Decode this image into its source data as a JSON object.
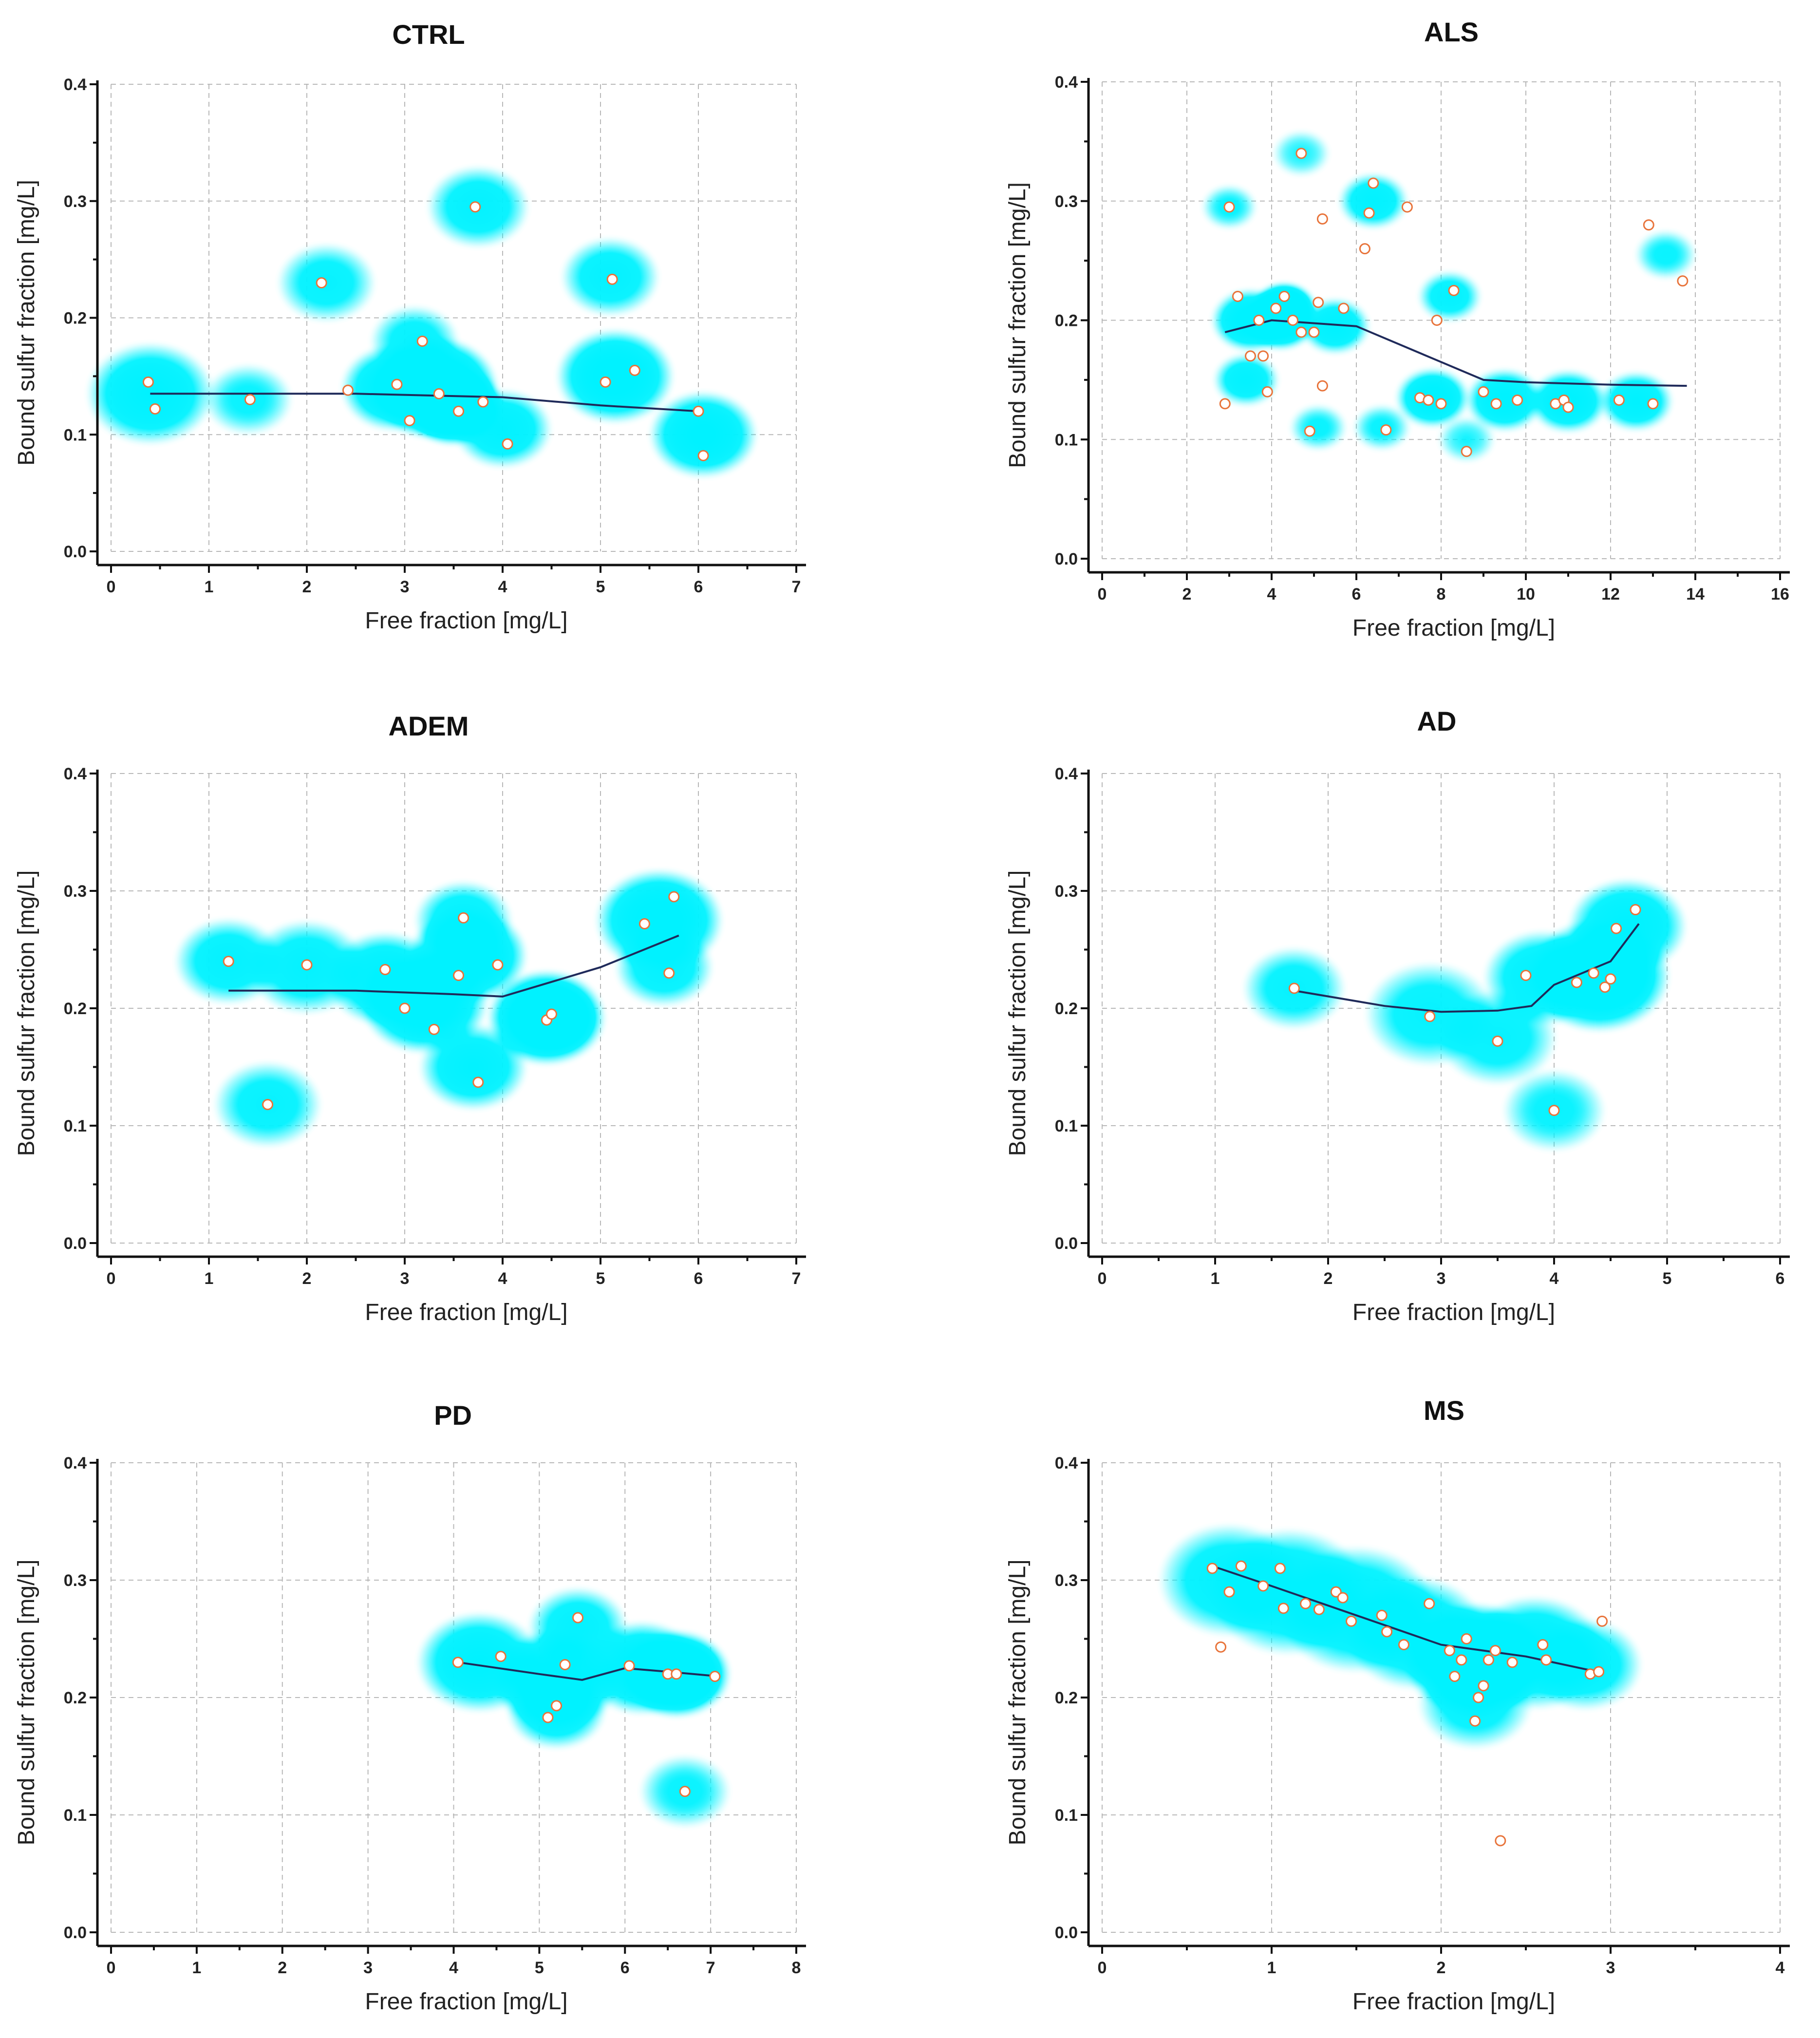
{
  "colors": {
    "heat_low": "#00f0ff",
    "heat_mid": "#22dd22",
    "heat_high": "#ff1a00",
    "trend_line": "#1f2a5a",
    "point_fill": "#ffffff",
    "point_stroke": "#e8743b",
    "grid": "#b8b8b8"
  },
  "chart_data": [
    {
      "type": "scatter",
      "title": "CTRL",
      "xlabel": "Free fraction [mg/L]",
      "ylabel": "Bound sulfur fraction [mg/L]",
      "xlim": [
        0,
        7
      ],
      "ylim": [
        0,
        0.4
      ],
      "xticks": [
        "0",
        "1",
        "2",
        "3",
        "4",
        "5",
        "6",
        "7"
      ],
      "yticks": [
        "0.0",
        "0.1",
        "0.2",
        "0.3",
        "0.4"
      ],
      "points": [
        [
          0.38,
          0.145
        ],
        [
          0.45,
          0.122
        ],
        [
          1.42,
          0.13
        ],
        [
          2.15,
          0.23
        ],
        [
          2.42,
          0.138
        ],
        [
          2.92,
          0.143
        ],
        [
          3.05,
          0.112
        ],
        [
          3.18,
          0.18
        ],
        [
          3.35,
          0.135
        ],
        [
          3.55,
          0.12
        ],
        [
          3.72,
          0.295
        ],
        [
          3.8,
          0.128
        ],
        [
          4.05,
          0.092
        ],
        [
          5.05,
          0.145
        ],
        [
          5.12,
          0.233
        ],
        [
          5.35,
          0.155
        ],
        [
          6.0,
          0.12
        ],
        [
          6.05,
          0.082
        ]
      ],
      "trend": [
        [
          0.4,
          0.135
        ],
        [
          2.5,
          0.135
        ],
        [
          4.0,
          0.132
        ],
        [
          5.0,
          0.125
        ],
        [
          6.0,
          0.12
        ]
      ],
      "heat": [
        [
          0.4,
          0.135,
          0.45,
          1.0
        ],
        [
          1.4,
          0.13,
          0.25,
          0.6
        ],
        [
          2.2,
          0.23,
          0.3,
          0.7
        ],
        [
          2.9,
          0.14,
          0.35,
          1.1
        ],
        [
          3.3,
          0.14,
          0.45,
          1.6
        ],
        [
          3.5,
          0.125,
          0.3,
          2.0
        ],
        [
          3.1,
          0.18,
          0.25,
          0.7
        ],
        [
          3.75,
          0.295,
          0.32,
          0.8
        ],
        [
          4.0,
          0.105,
          0.3,
          0.9
        ],
        [
          5.1,
          0.235,
          0.3,
          0.8
        ],
        [
          5.15,
          0.15,
          0.4,
          1.2
        ],
        [
          6.05,
          0.1,
          0.35,
          1.1
        ]
      ]
    },
    {
      "type": "scatter",
      "title": "ALS",
      "xlabel": "Free fraction [mg/L]",
      "ylabel": "Bound sulfur fraction [mg/L]",
      "xlim": [
        0,
        16
      ],
      "ylim": [
        0,
        0.4
      ],
      "xticks": [
        "0",
        "2",
        "4",
        "6",
        "8",
        "10",
        "12",
        "14",
        "16"
      ],
      "yticks": [
        "0.0",
        "0.1",
        "0.2",
        "0.3",
        "0.4"
      ],
      "points": [
        [
          3.0,
          0.295
        ],
        [
          2.9,
          0.13
        ],
        [
          3.2,
          0.22
        ],
        [
          3.5,
          0.17
        ],
        [
          3.7,
          0.2
        ],
        [
          3.8,
          0.17
        ],
        [
          3.9,
          0.14
        ],
        [
          4.1,
          0.21
        ],
        [
          4.3,
          0.22
        ],
        [
          4.5,
          0.2
        ],
        [
          4.7,
          0.19
        ],
        [
          5.0,
          0.19
        ],
        [
          5.1,
          0.215
        ],
        [
          5.2,
          0.145
        ],
        [
          4.9,
          0.107
        ],
        [
          5.2,
          0.285
        ],
        [
          5.7,
          0.21
        ],
        [
          6.2,
          0.26
        ],
        [
          6.3,
          0.29
        ],
        [
          6.4,
          0.315
        ],
        [
          6.7,
          0.108
        ],
        [
          7.2,
          0.295
        ],
        [
          4.7,
          0.34
        ],
        [
          7.5,
          0.135
        ],
        [
          7.7,
          0.133
        ],
        [
          7.9,
          0.2
        ],
        [
          8.0,
          0.13
        ],
        [
          8.3,
          0.225
        ],
        [
          8.6,
          0.09
        ],
        [
          9.0,
          0.14
        ],
        [
          9.3,
          0.13
        ],
        [
          9.8,
          0.133
        ],
        [
          10.7,
          0.13
        ],
        [
          10.9,
          0.133
        ],
        [
          11.0,
          0.127
        ],
        [
          12.2,
          0.133
        ],
        [
          13.0,
          0.13
        ],
        [
          12.9,
          0.28
        ],
        [
          13.7,
          0.233
        ]
      ],
      "trend": [
        [
          2.9,
          0.19
        ],
        [
          4.0,
          0.2
        ],
        [
          6.0,
          0.195
        ],
        [
          8.0,
          0.165
        ],
        [
          9.0,
          0.15
        ],
        [
          10.0,
          0.148
        ],
        [
          12.0,
          0.146
        ],
        [
          13.8,
          0.145
        ]
      ],
      "heat": [
        [
          3.5,
          0.2,
          0.9,
          1.2
        ],
        [
          4.2,
          0.2,
          0.8,
          1.5
        ],
        [
          4.3,
          0.21,
          0.55,
          2.2
        ],
        [
          5.5,
          0.195,
          0.7,
          1.0
        ],
        [
          3.4,
          0.15,
          0.6,
          0.9
        ],
        [
          6.4,
          0.3,
          0.7,
          0.9
        ],
        [
          4.7,
          0.34,
          0.4,
          0.5
        ],
        [
          3.0,
          0.295,
          0.35,
          0.6
        ],
        [
          8.2,
          0.22,
          0.55,
          0.8
        ],
        [
          7.8,
          0.135,
          0.8,
          1.2
        ],
        [
          9.5,
          0.133,
          0.9,
          1.1
        ],
        [
          11.0,
          0.132,
          0.9,
          1.1
        ],
        [
          12.6,
          0.132,
          0.8,
          1.0
        ],
        [
          13.3,
          0.255,
          0.5,
          0.6
        ],
        [
          6.6,
          0.11,
          0.4,
          0.6
        ],
        [
          5.1,
          0.11,
          0.4,
          0.6
        ],
        [
          8.6,
          0.1,
          0.4,
          0.5
        ]
      ]
    },
    {
      "type": "scatter",
      "title": "ADEM",
      "xlabel": "Free fraction [mg/L]",
      "ylabel": "Bound sulfur fraction [mg/L]",
      "xlim": [
        0,
        7
      ],
      "ylim": [
        0,
        0.4
      ],
      "xticks": [
        "0",
        "1",
        "2",
        "3",
        "4",
        "5",
        "6",
        "7"
      ],
      "yticks": [
        "0.0",
        "0.1",
        "0.2",
        "0.3",
        "0.4"
      ],
      "points": [
        [
          1.2,
          0.24
        ],
        [
          1.6,
          0.118
        ],
        [
          2.0,
          0.237
        ],
        [
          2.8,
          0.233
        ],
        [
          3.0,
          0.2
        ],
        [
          3.3,
          0.182
        ],
        [
          3.55,
          0.228
        ],
        [
          3.6,
          0.277
        ],
        [
          3.75,
          0.137
        ],
        [
          3.95,
          0.237
        ],
        [
          4.45,
          0.19
        ],
        [
          4.5,
          0.195
        ],
        [
          5.45,
          0.272
        ],
        [
          5.7,
          0.23
        ],
        [
          5.75,
          0.295
        ]
      ],
      "trend": [
        [
          1.2,
          0.215
        ],
        [
          2.5,
          0.215
        ],
        [
          3.5,
          0.212
        ],
        [
          4.0,
          0.21
        ],
        [
          5.0,
          0.235
        ],
        [
          5.8,
          0.262
        ]
      ],
      "heat": [
        [
          1.2,
          0.24,
          0.35,
          0.8
        ],
        [
          2.0,
          0.235,
          0.4,
          0.8
        ],
        [
          2.8,
          0.225,
          0.4,
          1.0
        ],
        [
          3.2,
          0.205,
          0.45,
          1.3
        ],
        [
          3.65,
          0.245,
          0.4,
          1.3
        ],
        [
          3.6,
          0.275,
          0.3,
          0.8
        ],
        [
          3.7,
          0.15,
          0.35,
          0.9
        ],
        [
          4.45,
          0.192,
          0.4,
          1.6
        ],
        [
          4.5,
          0.192,
          0.25,
          1.6
        ],
        [
          5.6,
          0.275,
          0.45,
          1.2
        ],
        [
          5.65,
          0.235,
          0.3,
          0.8
        ],
        [
          1.6,
          0.118,
          0.35,
          0.7
        ]
      ]
    },
    {
      "type": "scatter",
      "title": "AD",
      "xlabel": "Free fraction [mg/L]",
      "ylabel": "Bound sulfur fraction [mg/L]",
      "xlim": [
        0,
        6
      ],
      "ylim": [
        0,
        0.4
      ],
      "xticks": [
        "0",
        "1",
        "2",
        "3",
        "4",
        "5",
        "6"
      ],
      "yticks": [
        "0.0",
        "0.1",
        "0.2",
        "0.3",
        "0.4"
      ],
      "points": [
        [
          1.7,
          0.217
        ],
        [
          2.9,
          0.193
        ],
        [
          3.5,
          0.172
        ],
        [
          3.75,
          0.228
        ],
        [
          4.0,
          0.113
        ],
        [
          4.2,
          0.222
        ],
        [
          4.35,
          0.23
        ],
        [
          4.45,
          0.218
        ],
        [
          4.5,
          0.225
        ],
        [
          4.55,
          0.268
        ],
        [
          4.72,
          0.284
        ]
      ],
      "trend": [
        [
          1.7,
          0.215
        ],
        [
          2.5,
          0.202
        ],
        [
          3.0,
          0.197
        ],
        [
          3.5,
          0.198
        ],
        [
          3.8,
          0.202
        ],
        [
          4.0,
          0.22
        ],
        [
          4.5,
          0.24
        ],
        [
          4.75,
          0.272
        ]
      ],
      "heat": [
        [
          1.7,
          0.217,
          0.28,
          0.7
        ],
        [
          2.9,
          0.195,
          0.4,
          0.7
        ],
        [
          3.5,
          0.175,
          0.35,
          0.7
        ],
        [
          4.0,
          0.113,
          0.28,
          0.6
        ],
        [
          3.9,
          0.226,
          0.35,
          0.9
        ],
        [
          4.4,
          0.228,
          0.45,
          1.4
        ],
        [
          4.45,
          0.23,
          0.25,
          1.7
        ],
        [
          4.65,
          0.27,
          0.35,
          1.0
        ]
      ]
    },
    {
      "type": "scatter",
      "title": "PD",
      "xlabel": "Free fraction [mg/L]",
      "ylabel": "Bound sulfur fraction [mg/L]",
      "xlim": [
        0,
        8
      ],
      "ylim": [
        0,
        0.4
      ],
      "xticks": [
        "0",
        "1",
        "2",
        "3",
        "4",
        "5",
        "6",
        "7",
        "8"
      ],
      "yticks": [
        "0.0",
        "0.1",
        "0.2",
        "0.3",
        "0.4"
      ],
      "points": [
        [
          4.05,
          0.23
        ],
        [
          4.55,
          0.235
        ],
        [
          5.1,
          0.183
        ],
        [
          5.2,
          0.193
        ],
        [
          5.3,
          0.228
        ],
        [
          5.45,
          0.268
        ],
        [
          6.05,
          0.227
        ],
        [
          6.5,
          0.22
        ],
        [
          6.6,
          0.22
        ],
        [
          6.7,
          0.12
        ],
        [
          7.05,
          0.218
        ]
      ],
      "trend": [
        [
          4.05,
          0.23
        ],
        [
          5.0,
          0.22
        ],
        [
          5.5,
          0.215
        ],
        [
          6.0,
          0.225
        ],
        [
          6.5,
          0.222
        ],
        [
          7.1,
          0.218
        ]
      ],
      "heat": [
        [
          4.3,
          0.23,
          0.5,
          1.0
        ],
        [
          5.2,
          0.215,
          0.5,
          1.2
        ],
        [
          5.2,
          0.19,
          0.35,
          0.9
        ],
        [
          5.45,
          0.26,
          0.35,
          0.8
        ],
        [
          6.2,
          0.225,
          0.45,
          1.1
        ],
        [
          6.6,
          0.22,
          0.4,
          1.7
        ],
        [
          6.65,
          0.22,
          0.25,
          1.6
        ],
        [
          6.7,
          0.12,
          0.3,
          0.6
        ]
      ]
    },
    {
      "type": "scatter",
      "title": "MS",
      "xlabel": "Free fraction [mg/L]",
      "ylabel": "Bound sulfur fraction [mg/L]",
      "xlim": [
        0,
        4
      ],
      "ylim": [
        0,
        0.4
      ],
      "xticks": [
        "0",
        "1",
        "2",
        "3",
        "4"
      ],
      "yticks": [
        "0.0",
        "0.1",
        "0.2",
        "0.3",
        "0.4"
      ],
      "points": [
        [
          0.65,
          0.31
        ],
        [
          0.7,
          0.243
        ],
        [
          0.75,
          0.29
        ],
        [
          0.82,
          0.312
        ],
        [
          0.95,
          0.295
        ],
        [
          1.05,
          0.31
        ],
        [
          1.07,
          0.276
        ],
        [
          1.2,
          0.28
        ],
        [
          1.28,
          0.275
        ],
        [
          1.38,
          0.29
        ],
        [
          1.42,
          0.285
        ],
        [
          1.47,
          0.265
        ],
        [
          1.65,
          0.27
        ],
        [
          1.68,
          0.256
        ],
        [
          1.78,
          0.245
        ],
        [
          1.93,
          0.28
        ],
        [
          2.05,
          0.24
        ],
        [
          2.08,
          0.218
        ],
        [
          2.12,
          0.232
        ],
        [
          2.15,
          0.25
        ],
        [
          2.2,
          0.18
        ],
        [
          2.22,
          0.2
        ],
        [
          2.25,
          0.21
        ],
        [
          2.28,
          0.232
        ],
        [
          2.32,
          0.24
        ],
        [
          2.35,
          0.078
        ],
        [
          2.42,
          0.23
        ],
        [
          2.6,
          0.245
        ],
        [
          2.62,
          0.232
        ],
        [
          2.88,
          0.22
        ],
        [
          2.93,
          0.222
        ],
        [
          2.95,
          0.265
        ]
      ],
      "trend": [
        [
          0.65,
          0.312
        ],
        [
          1.0,
          0.295
        ],
        [
          1.5,
          0.27
        ],
        [
          2.0,
          0.245
        ],
        [
          2.5,
          0.235
        ],
        [
          2.92,
          0.222
        ]
      ],
      "heat": [
        [
          0.75,
          0.3,
          0.3,
          0.8
        ],
        [
          1.1,
          0.29,
          0.35,
          0.9
        ],
        [
          1.5,
          0.275,
          0.35,
          0.9
        ],
        [
          1.85,
          0.255,
          0.3,
          0.9
        ],
        [
          2.2,
          0.232,
          0.3,
          1.6
        ],
        [
          2.25,
          0.235,
          0.17,
          1.8
        ],
        [
          2.55,
          0.238,
          0.3,
          1.0
        ],
        [
          2.85,
          0.228,
          0.22,
          0.8
        ],
        [
          2.2,
          0.195,
          0.22,
          0.7
        ]
      ]
    }
  ]
}
